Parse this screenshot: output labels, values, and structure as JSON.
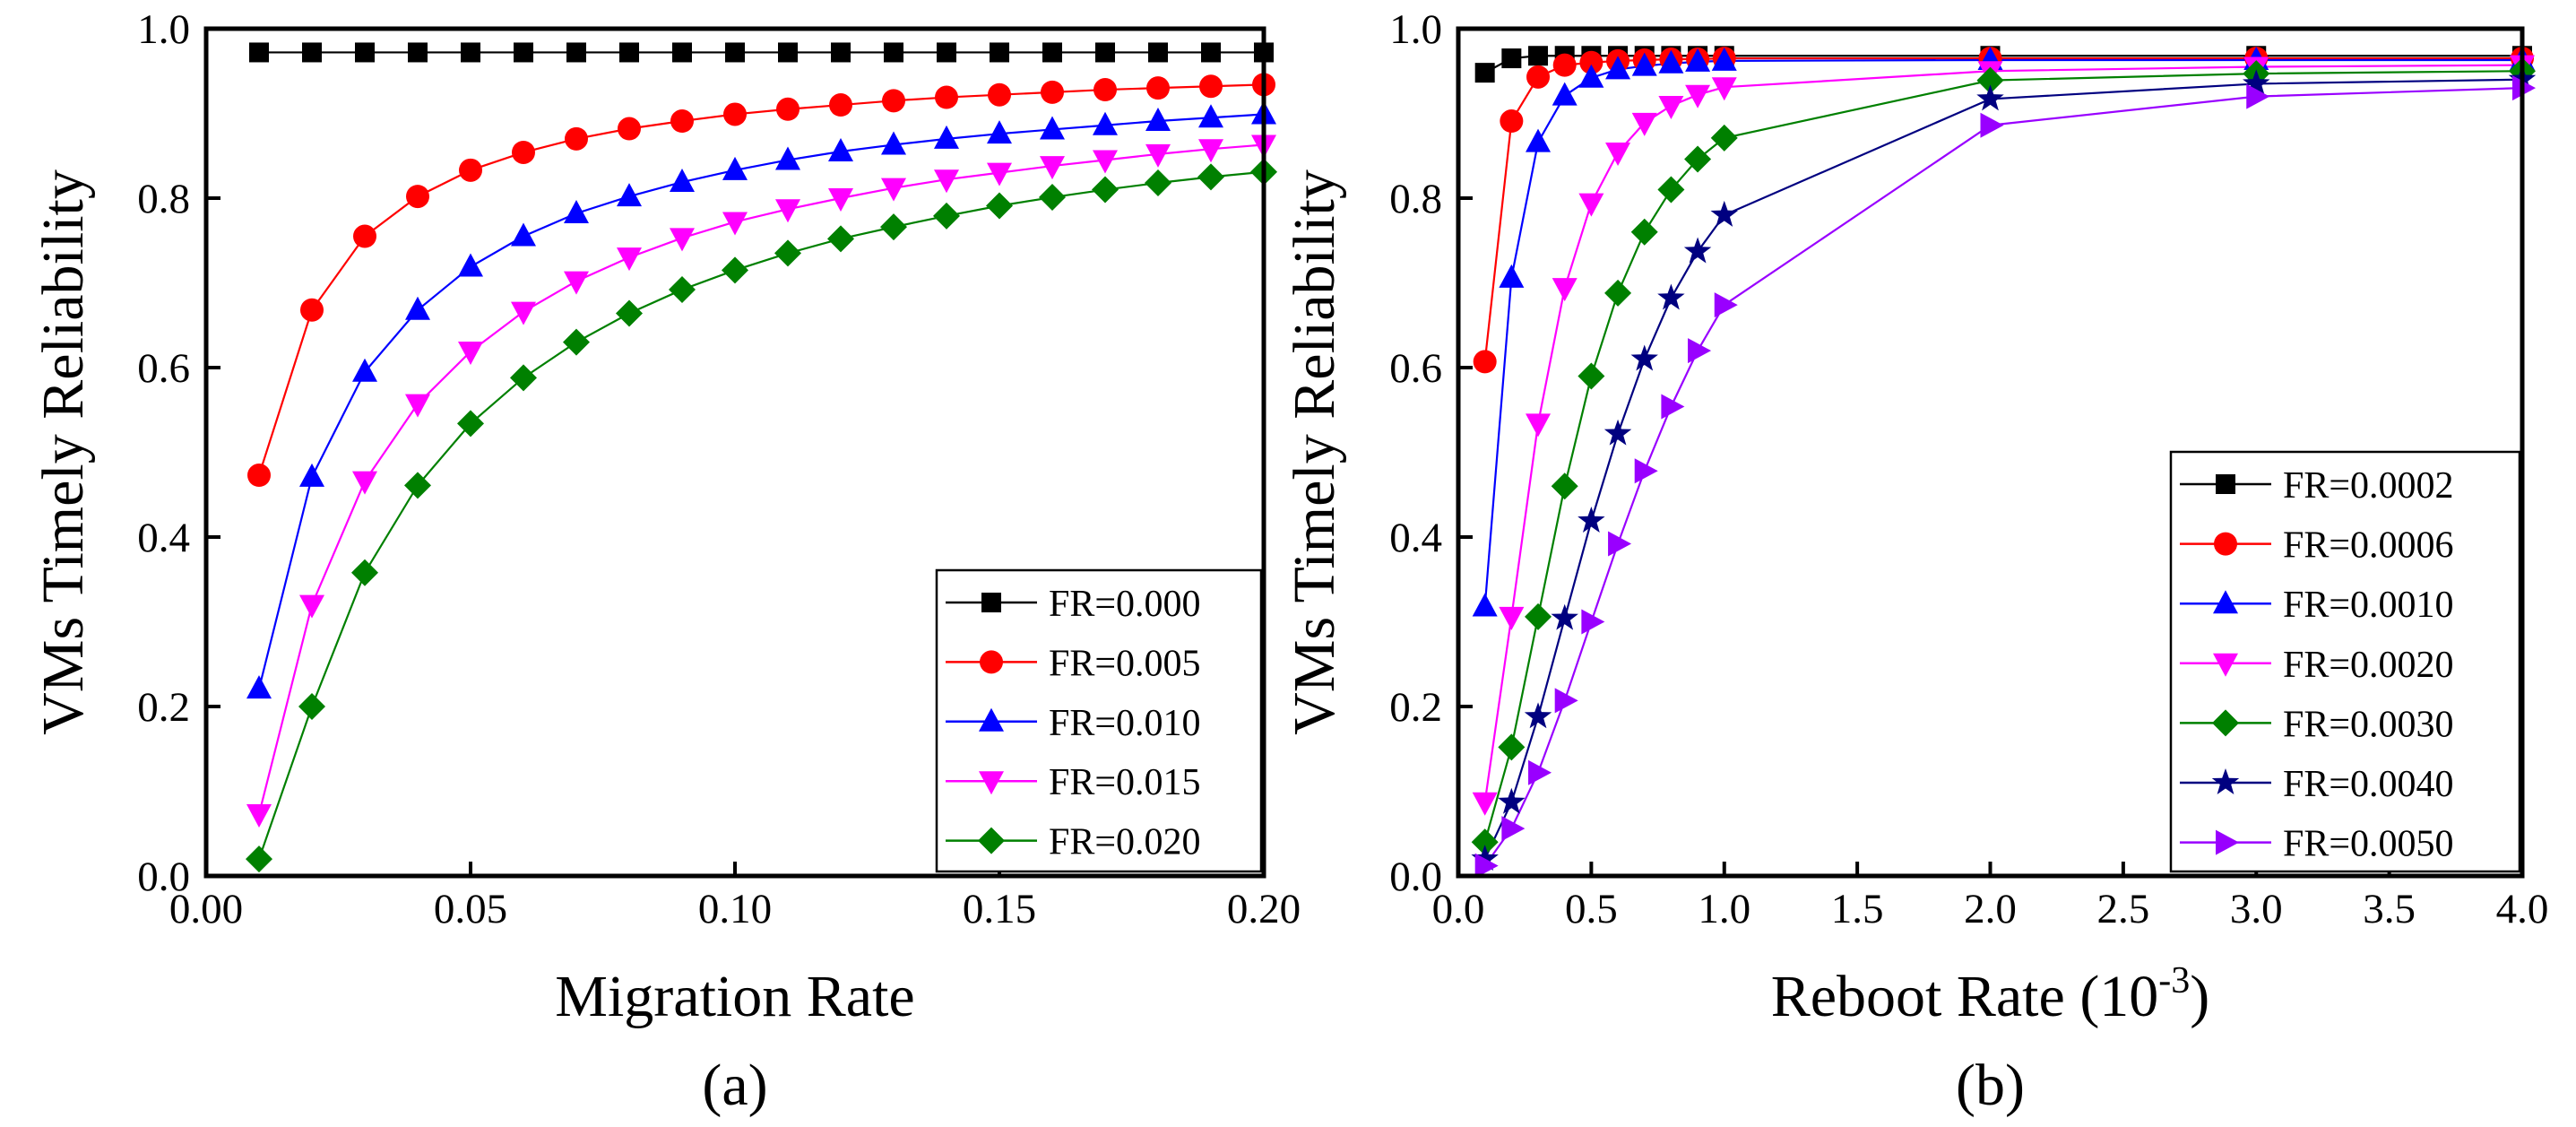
{
  "chart_data": [
    {
      "type": "line",
      "panel_label": "(a)",
      "xlabel": "Migration Rate",
      "ylabel": "VMs Timely Reliability",
      "xlim": [
        0.0,
        0.2
      ],
      "ylim": [
        0.0,
        1.0
      ],
      "xticks": [
        0.0,
        0.05,
        0.1,
        0.15,
        0.2
      ],
      "xtick_labels": [
        "0.00",
        "0.05",
        "0.10",
        "0.15",
        "0.20"
      ],
      "yticks": [
        0.0,
        0.2,
        0.4,
        0.6,
        0.8,
        1.0
      ],
      "ytick_labels": [
        "0.0",
        "0.2",
        "0.4",
        "0.6",
        "0.8",
        "1.0"
      ],
      "legend_position": "bottom-right",
      "x": [
        0.01,
        0.02,
        0.03,
        0.04,
        0.05,
        0.06,
        0.07,
        0.08,
        0.09,
        0.1,
        0.11,
        0.12,
        0.13,
        0.14,
        0.15,
        0.16,
        0.17,
        0.18,
        0.19,
        0.2
      ],
      "series": [
        {
          "name": "FR=0.000",
          "color": "#000000",
          "marker": "square",
          "values": [
            0.972,
            0.972,
            0.972,
            0.972,
            0.972,
            0.972,
            0.972,
            0.972,
            0.972,
            0.972,
            0.972,
            0.972,
            0.972,
            0.972,
            0.972,
            0.972,
            0.972,
            0.972,
            0.972,
            0.972
          ]
        },
        {
          "name": "FR=0.005",
          "color": "#ff0000",
          "marker": "circle",
          "values": [
            0.473,
            0.668,
            0.755,
            0.802,
            0.833,
            0.854,
            0.87,
            0.882,
            0.891,
            0.899,
            0.905,
            0.91,
            0.915,
            0.919,
            0.922,
            0.925,
            0.928,
            0.93,
            0.932,
            0.934
          ]
        },
        {
          "name": "FR=0.010",
          "color": "#0000ff",
          "marker": "triangle-up",
          "values": [
            0.221,
            0.471,
            0.595,
            0.668,
            0.719,
            0.755,
            0.782,
            0.802,
            0.819,
            0.833,
            0.845,
            0.855,
            0.863,
            0.87,
            0.876,
            0.881,
            0.886,
            0.891,
            0.895,
            0.899
          ]
        },
        {
          "name": "FR=0.015",
          "color": "#ff00ff",
          "marker": "triangle-down",
          "values": [
            0.073,
            0.32,
            0.466,
            0.557,
            0.619,
            0.666,
            0.702,
            0.73,
            0.753,
            0.772,
            0.787,
            0.8,
            0.812,
            0.822,
            0.83,
            0.838,
            0.845,
            0.852,
            0.858,
            0.863
          ]
        },
        {
          "name": "FR=0.020",
          "color": "#008000",
          "marker": "diamond",
          "values": [
            0.02,
            0.2,
            0.358,
            0.461,
            0.534,
            0.588,
            0.63,
            0.664,
            0.692,
            0.715,
            0.735,
            0.752,
            0.766,
            0.779,
            0.791,
            0.801,
            0.81,
            0.818,
            0.825,
            0.831
          ]
        }
      ]
    },
    {
      "type": "line",
      "panel_label": "(b)",
      "xlabel": "Reboot Rate  (10",
      "xlabel_exponent": "-3",
      "xlabel_suffix": ")",
      "ylabel": "VMs Timely Reliability",
      "xlim": [
        0.0,
        4.0
      ],
      "ylim": [
        0.0,
        1.0
      ],
      "xticks": [
        0.0,
        0.5,
        1.0,
        1.5,
        2.0,
        2.5,
        3.0,
        3.5,
        4.0
      ],
      "xtick_labels": [
        "0.0",
        "0.5",
        "1.0",
        "1.5",
        "2.0",
        "2.5",
        "3.0",
        "3.5",
        "4.0"
      ],
      "yticks": [
        0.0,
        0.2,
        0.4,
        0.6,
        0.8,
        1.0
      ],
      "ytick_labels": [
        "0.0",
        "0.2",
        "0.4",
        "0.6",
        "0.8",
        "1.0"
      ],
      "legend_position": "bottom-right",
      "x": [
        0.1,
        0.2,
        0.3,
        0.4,
        0.5,
        0.6,
        0.7,
        0.8,
        0.9,
        1.0,
        2.0,
        3.0,
        4.0
      ],
      "series": [
        {
          "name": "FR=0.0002",
          "color": "#000000",
          "marker": "square",
          "values": [
            0.948,
            0.965,
            0.968,
            0.968,
            0.968,
            0.968,
            0.968,
            0.968,
            0.968,
            0.968,
            0.968,
            0.968,
            0.968
          ]
        },
        {
          "name": "FR=0.0006",
          "color": "#ff0000",
          "marker": "circle",
          "values": [
            0.607,
            0.891,
            0.943,
            0.957,
            0.96,
            0.962,
            0.963,
            0.964,
            0.964,
            0.965,
            0.965,
            0.965,
            0.965
          ]
        },
        {
          "name": "FR=0.0010",
          "color": "#0000ff",
          "marker": "triangle-up",
          "values": [
            0.318,
            0.706,
            0.866,
            0.921,
            0.942,
            0.952,
            0.956,
            0.959,
            0.961,
            0.962,
            0.963,
            0.963,
            0.963
          ]
        },
        {
          "name": "FR=0.0020",
          "color": "#ff00ff",
          "marker": "triangle-down",
          "values": [
            0.087,
            0.306,
            0.534,
            0.694,
            0.794,
            0.854,
            0.889,
            0.909,
            0.922,
            0.931,
            0.95,
            0.955,
            0.957
          ]
        },
        {
          "name": "FR=0.0030",
          "color": "#008000",
          "marker": "diamond",
          "values": [
            0.04,
            0.152,
            0.306,
            0.46,
            0.59,
            0.688,
            0.76,
            0.81,
            0.846,
            0.871,
            0.939,
            0.947,
            0.95
          ]
        },
        {
          "name": "FR=0.0040",
          "color": "#000080",
          "marker": "star",
          "values": [
            0.02,
            0.087,
            0.188,
            0.304,
            0.419,
            0.522,
            0.61,
            0.682,
            0.737,
            0.78,
            0.917,
            0.935,
            0.94
          ]
        },
        {
          "name": "FR=0.0050",
          "color": "#9900ff",
          "marker": "triangle-right",
          "values": [
            0.012,
            0.056,
            0.122,
            0.207,
            0.3,
            0.392,
            0.478,
            0.554,
            0.62,
            0.674,
            0.886,
            0.92,
            0.93
          ]
        }
      ]
    }
  ]
}
